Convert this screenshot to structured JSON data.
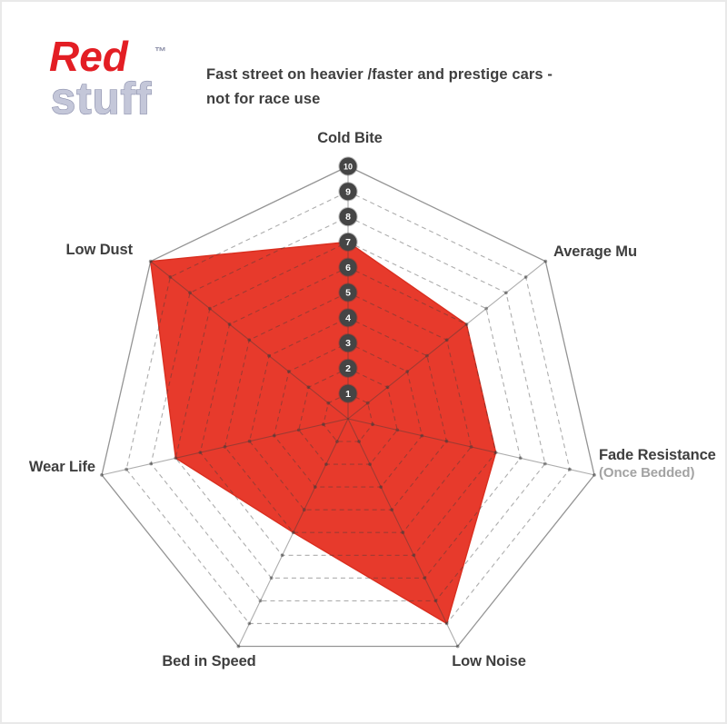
{
  "logo": {
    "line1": "Red",
    "line2": "stuff",
    "trademark": "™"
  },
  "header": {
    "description": "Fast street on heavier /faster and prestige cars -\nnot for race use"
  },
  "chart_data": {
    "type": "radar",
    "axes": [
      {
        "label": "Cold Bite",
        "value": 7
      },
      {
        "label": "Average Mu",
        "value": 6
      },
      {
        "label": "Fade Resistance",
        "sublabel": "(Once Bedded)",
        "value": 6
      },
      {
        "label": "Low Noise",
        "value": 9
      },
      {
        "label": "Bed in Speed",
        "value": 5
      },
      {
        "label": "Wear Life",
        "value": 7
      },
      {
        "label": "Low Dust",
        "value": 10
      }
    ],
    "scale": {
      "min": 1,
      "max": 10,
      "ticks": [
        "10",
        "9",
        "8",
        "7",
        "6",
        "5",
        "4",
        "3",
        "2",
        "1"
      ]
    },
    "rings": 10,
    "legend": "none",
    "grid": "dashed-rings-solid-spokes",
    "colors": {
      "fill": "#e73a2c",
      "fill_stroke": "#d92e1f",
      "grid_line": "rgba(60,60,60,0.42)",
      "outer_ring": "rgba(60,60,60,0.55)",
      "tick_badge": "#454545",
      "tick_text": "#ffffff",
      "label": "#3e3e3e",
      "sublabel": "#a3a3a3",
      "logo_red": "#e31e24",
      "logo_silver": "#c4c7d9",
      "logo_silver_stroke": "#8e92ae"
    }
  }
}
